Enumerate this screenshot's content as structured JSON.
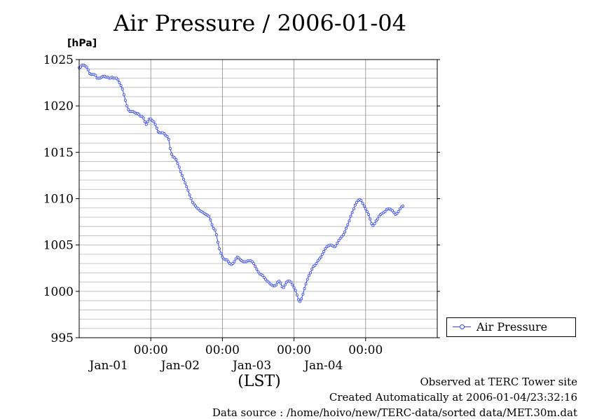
{
  "chart_data": {
    "type": "line",
    "title": "Air Pressure / 2006-01-04",
    "ylabel": "[hPa]",
    "xlabel": "(LST)",
    "ylim": [
      995,
      1025
    ],
    "yticks": [
      995,
      1000,
      1005,
      1010,
      1015,
      1020,
      1025
    ],
    "xlim": [
      "2005-12-31T00:00",
      "2006-01-05T00:00"
    ],
    "xticks": [
      {
        "time": "00:00",
        "date": "Jan-01"
      },
      {
        "time": "00:00",
        "date": "Jan-02"
      },
      {
        "time": "00:00",
        "date": "Jan-03"
      },
      {
        "time": "00:00",
        "date": "Jan-04"
      }
    ],
    "grid": true,
    "legend_position": "bottom-right, outside",
    "series": [
      {
        "name": "Air Pressure",
        "color": "#3344ff",
        "x_start": "2005-12-31T00:00",
        "x_step_minutes": 30,
        "values": [
          1024.1,
          1024.2,
          1024.4,
          1024.4,
          1024.3,
          1024.2,
          1023.9,
          1023.5,
          1023.4,
          1023.4,
          1023.4,
          1023.3,
          1023.0,
          1023.0,
          1023.0,
          1023.1,
          1023.2,
          1023.2,
          1023.1,
          1023.1,
          1023.0,
          1023.0,
          1023.1,
          1023.0,
          1023.0,
          1023.0,
          1022.8,
          1022.5,
          1022.2,
          1021.8,
          1021.2,
          1020.6,
          1020.0,
          1019.6,
          1019.4,
          1019.4,
          1019.4,
          1019.3,
          1019.2,
          1019.2,
          1019.1,
          1018.9,
          1018.9,
          1018.7,
          1018.3,
          1018.0,
          1018.3,
          1018.6,
          1018.6,
          1018.4,
          1018.3,
          1018.0,
          1017.6,
          1017.2,
          1017.1,
          1017.1,
          1017.1,
          1017.0,
          1016.8,
          1016.7,
          1016.4,
          1015.4,
          1014.8,
          1014.5,
          1014.4,
          1014.2,
          1013.8,
          1013.4,
          1012.9,
          1012.5,
          1012.1,
          1011.7,
          1011.3,
          1010.9,
          1010.4,
          1010.0,
          1009.6,
          1009.4,
          1009.2,
          1009.0,
          1008.9,
          1008.7,
          1008.6,
          1008.5,
          1008.4,
          1008.3,
          1008.2,
          1008.1,
          1007.7,
          1007.2,
          1006.8,
          1006.6,
          1006.1,
          1005.3,
          1004.6,
          1004.1,
          1003.7,
          1003.5,
          1003.4,
          1003.4,
          1003.2,
          1003.0,
          1002.9,
          1003.0,
          1003.2,
          1003.5,
          1003.7,
          1003.6,
          1003.4,
          1003.3,
          1003.2,
          1003.2,
          1003.2,
          1003.3,
          1003.3,
          1003.3,
          1003.2,
          1003.0,
          1002.7,
          1002.4,
          1002.1,
          1001.9,
          1001.8,
          1001.7,
          1001.5,
          1001.3,
          1001.1,
          1001.0,
          1000.8,
          1000.7,
          1000.6,
          1000.6,
          1000.7,
          1001.0,
          1001.1,
          1000.9,
          1000.5,
          1000.4,
          1000.7,
          1001.0,
          1001.1,
          1001.1,
          1001.0,
          1000.7,
          1000.4,
          1000.1,
          999.6,
          999.1,
          998.9,
          999.2,
          999.7,
          1000.3,
          1000.8,
          1001.3,
          1001.7,
          1002.0,
          1002.4,
          1002.7,
          1002.8,
          1003.0,
          1003.3,
          1003.5,
          1003.7,
          1004.0,
          1004.3,
          1004.6,
          1004.8,
          1004.9,
          1005.0,
          1005.0,
          1004.9,
          1004.8,
          1004.9,
          1005.2,
          1005.5,
          1005.7,
          1005.9,
          1006.1,
          1006.4,
          1006.8,
          1007.2,
          1007.6,
          1008.1,
          1008.5,
          1008.9,
          1009.3,
          1009.6,
          1009.8,
          1009.9,
          1009.8,
          1009.5,
          1009.2,
          1008.9,
          1008.6,
          1008.3,
          1007.8,
          1007.3,
          1007.1,
          1007.3,
          1007.6,
          1007.8,
          1008.1,
          1008.3,
          1008.4,
          1008.5,
          1008.6,
          1008.8,
          1008.9,
          1008.9,
          1008.8,
          1008.7,
          1008.5,
          1008.3,
          1008.4,
          1008.6,
          1008.9,
          1009.1,
          1009.2
        ]
      }
    ]
  },
  "legend": {
    "label": "Air Pressure"
  },
  "footer": {
    "observed": "Observed at TERC Tower site",
    "created": "Created Automatically at 2006-01-04/23:32:16",
    "source": "Data source : /home/hoivo/new/TERC-data/sorted  data/MET.30m.dat"
  }
}
